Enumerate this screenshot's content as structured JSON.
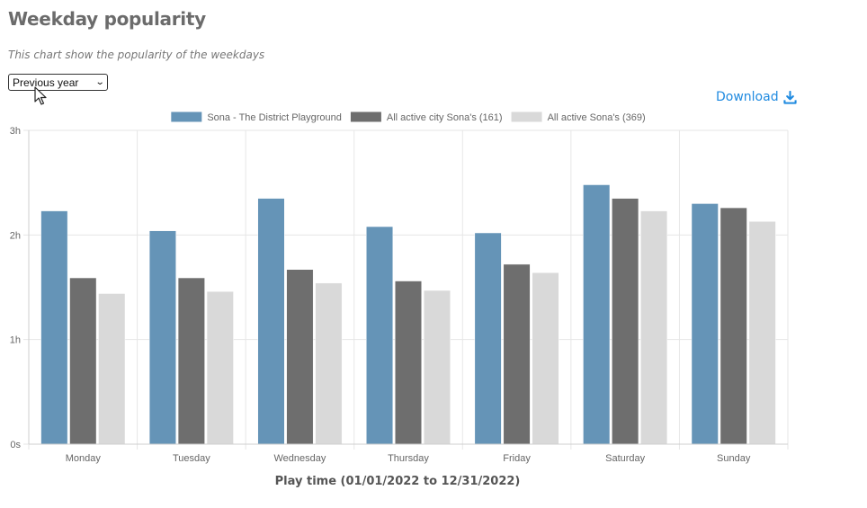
{
  "page": {
    "title": "Weekday popularity",
    "subtitle": "This chart show the popularity of the weekdays",
    "period_select": {
      "value": "Previous year"
    },
    "download_label": "Download",
    "download_icon": "download-icon",
    "cursor_icon": "mouse-pointer-icon"
  },
  "chart_data": {
    "type": "bar",
    "title": "",
    "xlabel": "Play time (01/01/2022 to 12/31/2022)",
    "ylabel": "",
    "categories": [
      "Monday",
      "Tuesday",
      "Wednesday",
      "Thursday",
      "Friday",
      "Saturday",
      "Sunday"
    ],
    "y_ticks": [
      {
        "value": 0,
        "label": "0s"
      },
      {
        "value": 1,
        "label": "1h"
      },
      {
        "value": 2,
        "label": "2h"
      },
      {
        "value": 3,
        "label": "3h"
      }
    ],
    "ylim": [
      0,
      3
    ],
    "y_unit": "hours",
    "grid": true,
    "legend_position": "top",
    "series": [
      {
        "name": "Sona - The District Playground",
        "color": "#6594b7",
        "values": [
          2.23,
          2.04,
          2.35,
          2.08,
          2.02,
          2.48,
          2.3
        ]
      },
      {
        "name": "All active city Sona's (161)",
        "color": "#6e6e6e",
        "values": [
          1.59,
          1.59,
          1.67,
          1.56,
          1.72,
          2.35,
          2.26
        ]
      },
      {
        "name": "All active Sona's (369)",
        "color": "#d9d9d9",
        "values": [
          1.44,
          1.46,
          1.54,
          1.47,
          1.64,
          2.23,
          2.13
        ]
      }
    ]
  }
}
